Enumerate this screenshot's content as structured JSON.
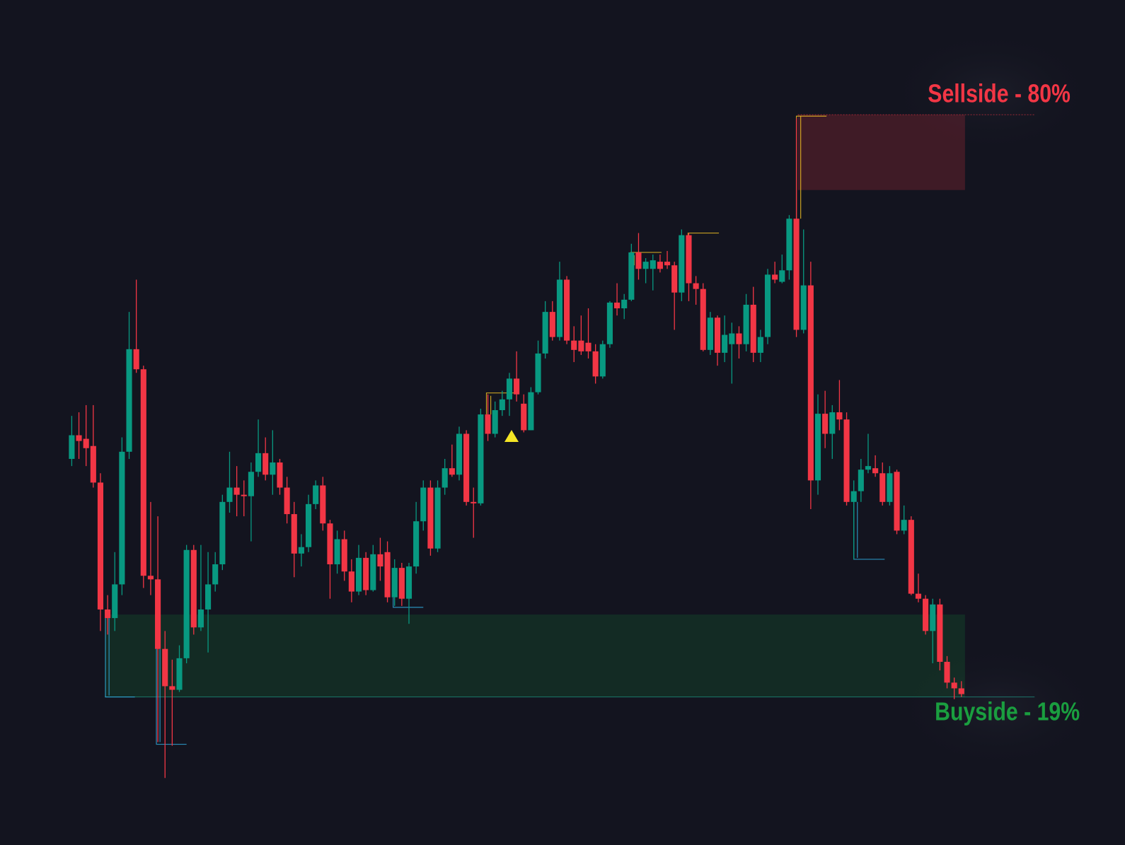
{
  "chart_data": {
    "type": "candlestick",
    "ylim": [
      0,
      1100
    ],
    "up_color": "#089981",
    "down_color": "#f23645",
    "open": [
      460,
      493,
      488,
      478,
      427,
      250,
      238,
      285,
      470,
      613,
      585,
      297,
      292,
      195,
      143,
      138,
      182,
      333,
      225,
      250,
      285,
      313,
      400,
      420,
      410,
      408,
      442,
      468,
      438,
      455,
      420,
      383,
      328,
      337,
      397,
      423,
      370,
      313,
      348,
      303,
      275,
      322,
      277,
      327,
      330,
      267,
      308,
      265,
      310,
      373,
      420,
      335,
      420,
      447,
      438,
      495,
      400,
      398,
      522,
      495,
      528,
      543,
      572,
      537,
      500,
      553,
      607,
      665,
      630,
      710,
      625,
      625,
      622,
      610,
      575,
      620,
      678,
      670,
      682,
      748,
      725,
      725,
      735,
      735,
      730,
      692,
      772,
      705,
      697,
      612,
      657,
      608,
      620,
      635,
      620,
      675,
      608,
      630,
      717,
      707,
      723,
      795,
      640,
      702,
      430,
      523,
      495,
      525,
      515,
      400,
      415,
      445,
      447,
      440,
      400,
      442,
      360,
      375,
      272,
      265,
      220,
      257,
      177,
      148,
      140
    ],
    "high": [
      520,
      525,
      535,
      535,
      440,
      270,
      330,
      490,
      665,
      710,
      590,
      400,
      380,
      220,
      180,
      200,
      340,
      340,
      340,
      330,
      330,
      410,
      470,
      450,
      430,
      455,
      515,
      490,
      500,
      460,
      435,
      400,
      355,
      410,
      430,
      435,
      375,
      360,
      360,
      320,
      340,
      330,
      340,
      350,
      345,
      320,
      315,
      315,
      400,
      430,
      430,
      430,
      460,
      480,
      505,
      500,
      420,
      530,
      550,
      540,
      555,
      580,
      610,
      550,
      560,
      625,
      680,
      680,
      735,
      715,
      645,
      660,
      670,
      620,
      625,
      680,
      705,
      690,
      760,
      775,
      740,
      745,
      745,
      750,
      735,
      780,
      775,
      715,
      705,
      665,
      660,
      660,
      650,
      645,
      690,
      700,
      640,
      725,
      735,
      745,
      800,
      935,
      780,
      735,
      550,
      555,
      535,
      570,
      525,
      430,
      460,
      495,
      465,
      455,
      450,
      445,
      395,
      380,
      300,
      270,
      265,
      265,
      185,
      155,
      150
    ],
    "low": [
      450,
      460,
      450,
      420,
      220,
      215,
      220,
      270,
      460,
      580,
      280,
      270,
      65,
      15,
      60,
      135,
      175,
      215,
      220,
      190,
      275,
      305,
      385,
      380,
      380,
      345,
      435,
      430,
      410,
      410,
      370,
      295,
      310,
      330,
      390,
      360,
      265,
      300,
      290,
      260,
      270,
      270,
      275,
      290,
      260,
      255,
      255,
      230,
      300,
      360,
      325,
      330,
      410,
      435,
      430,
      395,
      350,
      395,
      485,
      490,
      520,
      520,
      540,
      497,
      500,
      550,
      600,
      625,
      625,
      620,
      595,
      605,
      600,
      565,
      572,
      615,
      660,
      655,
      680,
      710,
      705,
      695,
      720,
      725,
      640,
      680,
      680,
      675,
      610,
      605,
      590,
      595,
      565,
      600,
      610,
      595,
      595,
      620,
      705,
      705,
      710,
      630,
      635,
      390,
      410,
      475,
      460,
      500,
      395,
      320,
      400,
      440,
      435,
      395,
      395,
      355,
      355,
      270,
      260,
      215,
      175,
      165,
      140,
      125,
      128
    ],
    "close": [
      493,
      485,
      475,
      427,
      250,
      238,
      285,
      470,
      613,
      585,
      297,
      292,
      195,
      143,
      138,
      182,
      333,
      225,
      250,
      285,
      313,
      400,
      420,
      410,
      408,
      442,
      468,
      438,
      455,
      420,
      383,
      328,
      337,
      397,
      423,
      370,
      313,
      348,
      303,
      275,
      322,
      277,
      327,
      310,
      267,
      308,
      265,
      310,
      373,
      420,
      335,
      420,
      447,
      438,
      495,
      400,
      398,
      522,
      495,
      528,
      543,
      572,
      550,
      500,
      553,
      607,
      665,
      630,
      710,
      625,
      612,
      610,
      610,
      575,
      620,
      678,
      670,
      682,
      748,
      725,
      735,
      737,
      725,
      730,
      692,
      772,
      705,
      697,
      612,
      657,
      608,
      633,
      635,
      620,
      675,
      608,
      630,
      717,
      710,
      723,
      795,
      640,
      702,
      430,
      523,
      495,
      525,
      515,
      400,
      415,
      445,
      450,
      440,
      400,
      440,
      360,
      375,
      272,
      265,
      220,
      257,
      177,
      148,
      140,
      132
    ],
    "zones": [
      {
        "label": "Sellside - 80%",
        "top": 940,
        "bottom": 835,
        "color": "#f23645"
      },
      {
        "label": "Buyside - 19%",
        "top": 243,
        "bottom": 128,
        "color": "#1a9e3f"
      }
    ]
  }
}
